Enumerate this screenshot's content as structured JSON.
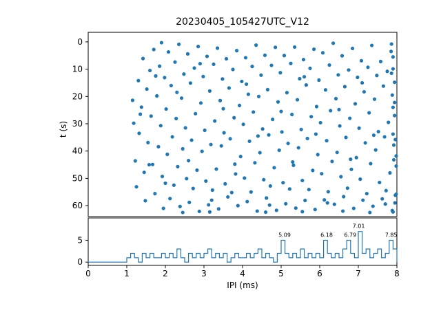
{
  "chart_data": {
    "type": [
      "scatter",
      "line"
    ],
    "title": "20230405_105427UTC_V12",
    "xlabel": "IPI (ms)",
    "xlim": [
      0,
      8
    ],
    "xticks": [
      0,
      1,
      2,
      3,
      4,
      5,
      6,
      7,
      8
    ],
    "scatter": {
      "ylabel": "t (s)",
      "y_top": -3.5,
      "y_bottom": 64,
      "inverted_y": true,
      "yticks": [
        0,
        10,
        20,
        30,
        40,
        50,
        60
      ],
      "marker_color": "#1f77b4",
      "points": [
        [
          1.15,
          21.4
        ],
        [
          1.18,
          29.8
        ],
        [
          1.22,
          43.6
        ],
        [
          1.25,
          53.1
        ],
        [
          1.3,
          14.2
        ],
        [
          1.32,
          33.5
        ],
        [
          1.38,
          23.9
        ],
        [
          1.42,
          6.1
        ],
        [
          1.45,
          47.8
        ],
        [
          1.48,
          58.2
        ],
        [
          1.52,
          17.3
        ],
        [
          1.55,
          36.9
        ],
        [
          1.6,
          10.5
        ],
        [
          1.63,
          27.2
        ],
        [
          1.67,
          44.9
        ],
        [
          1.7,
          2.8
        ],
        [
          1.73,
          55.6
        ],
        [
          1.78,
          19.8
        ],
        [
          1.82,
          38.4
        ],
        [
          1.85,
          8.9
        ],
        [
          1.88,
          30.7
        ],
        [
          1.92,
          49.3
        ],
        [
          1.95,
          61.0
        ],
        [
          1.98,
          13.1
        ],
        [
          2.02,
          24.6
        ],
        [
          2.05,
          41.2
        ],
        [
          2.08,
          3.7
        ],
        [
          2.12,
          57.4
        ],
        [
          2.15,
          16.0
        ],
        [
          2.18,
          34.8
        ],
        [
          2.22,
          52.5
        ],
        [
          2.25,
          7.4
        ],
        [
          2.28,
          28.1
        ],
        [
          2.32,
          45.7
        ],
        [
          2.35,
          0.9
        ],
        [
          2.38,
          60.3
        ],
        [
          2.42,
          20.6
        ],
        [
          2.45,
          39.2
        ],
        [
          2.48,
          11.8
        ],
        [
          2.52,
          31.5
        ],
        [
          2.55,
          50.1
        ],
        [
          2.58,
          4.4
        ],
        [
          2.62,
          58.8
        ],
        [
          2.65,
          15.1
        ],
        [
          2.68,
          36.0
        ],
        [
          2.72,
          53.7
        ],
        [
          2.75,
          9.6
        ],
        [
          2.78,
          26.3
        ],
        [
          2.82,
          47.0
        ],
        [
          2.85,
          1.7
        ],
        [
          2.88,
          62.1
        ],
        [
          2.92,
          22.4
        ],
        [
          2.95,
          40.1
        ],
        [
          2.98,
          12.7
        ],
        [
          3.02,
          32.4
        ],
        [
          3.05,
          51.0
        ],
        [
          3.08,
          5.3
        ],
        [
          3.12,
          59.7
        ],
        [
          3.15,
          18.0
        ],
        [
          3.18,
          37.6
        ],
        [
          3.22,
          54.3
        ],
        [
          3.25,
          8.2
        ],
        [
          3.28,
          29.0
        ],
        [
          3.32,
          46.6
        ],
        [
          3.35,
          2.3
        ],
        [
          3.38,
          61.2
        ],
        [
          3.42,
          21.5
        ],
        [
          3.45,
          38.1
        ],
        [
          3.48,
          13.6
        ],
        [
          3.52,
          33.3
        ],
        [
          3.55,
          52.0
        ],
        [
          3.58,
          6.2
        ],
        [
          3.62,
          56.8
        ],
        [
          3.65,
          16.9
        ],
        [
          3.68,
          35.5
        ],
        [
          3.72,
          55.2
        ],
        [
          3.75,
          10.1
        ],
        [
          3.78,
          27.8
        ],
        [
          3.82,
          48.4
        ],
        [
          3.85,
          3.2
        ],
        [
          3.88,
          60.0
        ],
        [
          3.92,
          23.3
        ],
        [
          3.95,
          42.0
        ],
        [
          3.98,
          14.5
        ],
        [
          4.02,
          30.2
        ],
        [
          4.05,
          49.9
        ],
        [
          4.08,
          5.8
        ],
        [
          4.12,
          58.5
        ],
        [
          4.15,
          19.2
        ],
        [
          4.18,
          36.4
        ],
        [
          4.22,
          55.0
        ],
        [
          4.25,
          9.0
        ],
        [
          4.28,
          25.7
        ],
        [
          4.32,
          44.3
        ],
        [
          4.35,
          1.2
        ],
        [
          4.38,
          62.0
        ],
        [
          4.42,
          20.0
        ],
        [
          4.45,
          40.6
        ],
        [
          4.48,
          12.2
        ],
        [
          4.52,
          31.9
        ],
        [
          4.55,
          50.5
        ],
        [
          4.58,
          4.9
        ],
        [
          4.62,
          57.2
        ],
        [
          4.65,
          17.5
        ],
        [
          4.68,
          34.1
        ],
        [
          4.72,
          52.8
        ],
        [
          4.75,
          8.6
        ],
        [
          4.78,
          28.4
        ],
        [
          4.82,
          46.1
        ],
        [
          4.85,
          2.0
        ],
        [
          4.88,
          61.7
        ],
        [
          4.92,
          22.0
        ],
        [
          4.95,
          39.7
        ],
        [
          4.98,
          11.3
        ],
        [
          5.02,
          33.0
        ],
        [
          5.05,
          51.6
        ],
        [
          5.08,
          5.0
        ],
        [
          5.12,
          59.3
        ],
        [
          5.15,
          18.6
        ],
        [
          5.18,
          37.2
        ],
        [
          5.22,
          53.9
        ],
        [
          5.25,
          7.9
        ],
        [
          5.28,
          26.6
        ],
        [
          5.32,
          45.2
        ],
        [
          5.35,
          1.9
        ],
        [
          5.38,
          60.9
        ],
        [
          5.42,
          21.2
        ],
        [
          5.45,
          38.8
        ],
        [
          5.48,
          13.5
        ],
        [
          5.52,
          32.1
        ],
        [
          5.55,
          50.8
        ],
        [
          5.58,
          6.5
        ],
        [
          5.62,
          58.1
        ],
        [
          5.65,
          15.8
        ],
        [
          5.68,
          35.4
        ],
        [
          5.72,
          54.1
        ],
        [
          5.75,
          9.7
        ],
        [
          5.78,
          27.4
        ],
        [
          5.82,
          47.1
        ],
        [
          5.85,
          2.7
        ],
        [
          5.88,
          61.4
        ],
        [
          5.92,
          23.7
        ],
        [
          5.95,
          41.3
        ],
        [
          5.98,
          14.0
        ],
        [
          6.02,
          29.6
        ],
        [
          6.05,
          48.3
        ],
        [
          6.08,
          4.0
        ],
        [
          6.12,
          57.9
        ],
        [
          6.15,
          17.6
        ],
        [
          6.18,
          36.2
        ],
        [
          6.22,
          54.9
        ],
        [
          6.25,
          8.5
        ],
        [
          6.28,
          25.2
        ],
        [
          6.32,
          43.8
        ],
        [
          6.35,
          0.5
        ],
        [
          6.38,
          59.5
        ],
        [
          6.42,
          20.8
        ],
        [
          6.45,
          40.5
        ],
        [
          6.48,
          12.1
        ],
        [
          6.52,
          30.8
        ],
        [
          6.55,
          49.4
        ],
        [
          6.58,
          5.1
        ],
        [
          6.62,
          56.7
        ],
        [
          6.65,
          16.4
        ],
        [
          6.68,
          35.0
        ],
        [
          6.72,
          53.6
        ],
        [
          6.75,
          10.3
        ],
        [
          6.78,
          28.0
        ],
        [
          6.82,
          46.7
        ],
        [
          6.85,
          2.4
        ],
        [
          6.88,
          61.0
        ],
        [
          6.92,
          22.7
        ],
        [
          6.95,
          42.4
        ],
        [
          6.98,
          13.0
        ],
        [
          7.02,
          31.6
        ],
        [
          7.05,
          50.3
        ],
        [
          7.08,
          6.9
        ],
        [
          7.12,
          58.0
        ],
        [
          7.15,
          18.3
        ],
        [
          7.18,
          37.0
        ],
        [
          7.22,
          55.6
        ],
        [
          7.25,
          9.3
        ],
        [
          7.28,
          26.0
        ],
        [
          7.32,
          44.6
        ],
        [
          7.35,
          1.3
        ],
        [
          7.38,
          60.2
        ],
        [
          7.42,
          21.0
        ],
        [
          7.45,
          39.6
        ],
        [
          7.48,
          12.3
        ],
        [
          7.52,
          32.9
        ],
        [
          7.55,
          51.5
        ],
        [
          7.58,
          7.2
        ],
        [
          7.62,
          57.5
        ],
        [
          7.65,
          16.2
        ],
        [
          7.68,
          34.8
        ],
        [
          7.72,
          54.5
        ],
        [
          7.75,
          10.8
        ],
        [
          7.78,
          29.5
        ],
        [
          7.82,
          48.0
        ],
        [
          7.85,
          3.5
        ],
        [
          7.88,
          61.8
        ],
        [
          7.9,
          24.0
        ],
        [
          7.92,
          43.2
        ],
        [
          7.94,
          14.8
        ],
        [
          7.96,
          35.8
        ],
        [
          7.98,
          55.8
        ],
        [
          7.9,
          5.5
        ],
        [
          7.95,
          59.0
        ],
        [
          7.88,
          19.5
        ],
        [
          7.92,
          37.8
        ],
        [
          7.96,
          56.2
        ],
        [
          7.9,
          9.9
        ],
        [
          7.94,
          27.0
        ],
        [
          7.98,
          45.5
        ],
        [
          7.86,
          0.8
        ],
        [
          7.9,
          62.3
        ],
        [
          7.94,
          22.2
        ],
        [
          7.98,
          41.8
        ],
        [
          7.86,
          11.5
        ],
        [
          7.9,
          33.8
        ],
        [
          1.35,
          26.5
        ],
        [
          1.58,
          45.0
        ],
        [
          1.75,
          12.5
        ],
        [
          2.0,
          51.8
        ],
        [
          2.3,
          18.5
        ],
        [
          2.6,
          43.5
        ],
        [
          2.9,
          8.0
        ],
        [
          3.2,
          58.0
        ],
        [
          3.5,
          24.5
        ],
        [
          3.8,
          44.8
        ],
        [
          4.1,
          15.5
        ],
        [
          4.4,
          34.5
        ],
        [
          4.7,
          59.8
        ],
        [
          5.0,
          25.5
        ],
        [
          5.3,
          44.0
        ],
        [
          5.6,
          12.8
        ],
        [
          5.9,
          33.8
        ],
        [
          6.2,
          59.0
        ],
        [
          6.5,
          24.8
        ],
        [
          6.8,
          43.0
        ],
        [
          7.1,
          15.0
        ],
        [
          7.4,
          34.2
        ],
        [
          7.7,
          59.4
        ],
        [
          2.45,
          62.5
        ],
        [
          3.15,
          62.3
        ],
        [
          4.6,
          62.4
        ],
        [
          5.55,
          62.2
        ],
        [
          6.6,
          62.0
        ],
        [
          7.3,
          62.5
        ],
        [
          1.9,
          0.3
        ]
      ]
    },
    "histogram": {
      "ylabel": "",
      "y_top": 10.1,
      "y_bottom": -0.75,
      "yticks": [
        0,
        5
      ],
      "line_color": "#1f77b4",
      "bin_width": 0.1,
      "x_start": 0,
      "values": [
        0,
        0,
        0,
        0,
        0,
        0,
        0,
        0,
        0,
        0,
        1,
        2,
        1,
        0,
        2,
        1,
        2,
        1,
        1,
        2,
        1,
        2,
        1,
        3,
        1,
        0,
        2,
        1,
        2,
        1,
        2,
        3,
        1,
        2,
        1,
        2,
        0,
        1,
        2,
        1,
        1,
        2,
        1,
        2,
        3,
        1,
        2,
        1,
        0,
        2,
        5,
        2,
        1,
        2,
        1,
        3,
        1,
        2,
        1,
        2,
        1,
        5,
        2,
        1,
        2,
        1,
        3,
        5,
        2,
        1,
        7,
        2,
        3,
        1,
        2,
        3,
        1,
        2,
        5,
        3
      ],
      "annotations": [
        {
          "x": 5.09,
          "y": 5,
          "label": "5.09"
        },
        {
          "x": 6.18,
          "y": 5,
          "label": "6.18"
        },
        {
          "x": 6.79,
          "y": 5,
          "label": "6.79"
        },
        {
          "x": 7.01,
          "y": 7,
          "label": "7.01"
        },
        {
          "x": 7.85,
          "y": 5,
          "label": "7.85"
        }
      ]
    }
  }
}
